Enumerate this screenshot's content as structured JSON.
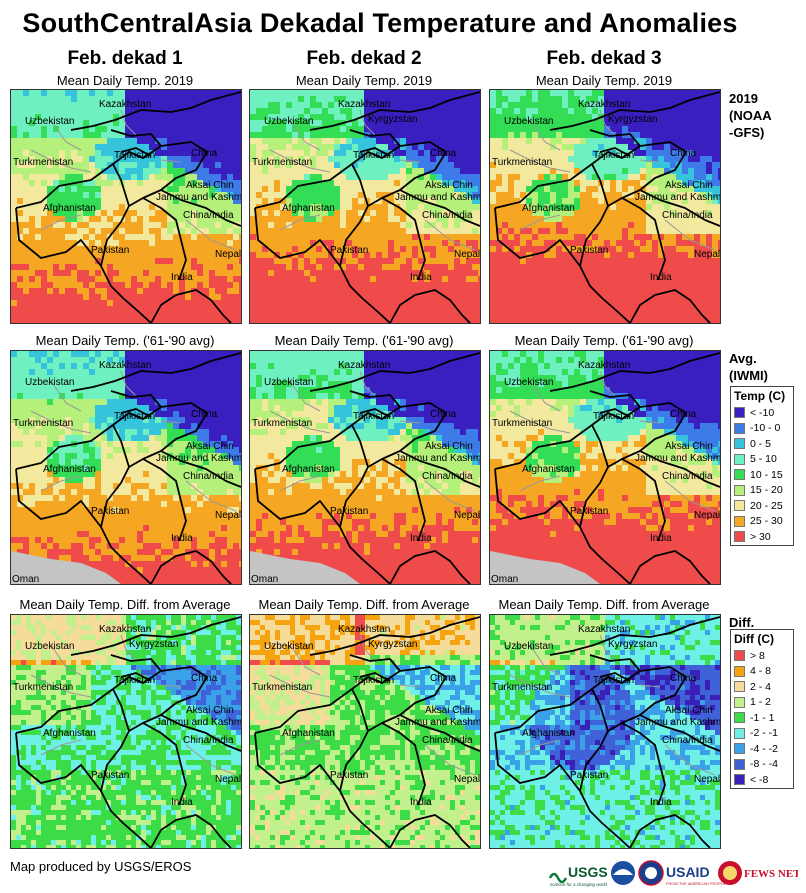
{
  "title": "SouthCentralAsia Dekadal Temperature and Anomalies",
  "columns": [
    "Feb. dekad 1",
    "Feb. dekad 2",
    "Feb. dekad 3"
  ],
  "rows": [
    {
      "key": "current",
      "panel_title": "Mean Daily Temp. 2019",
      "label_lines": [
        "2019",
        "(NOAA",
        "-GFS)"
      ]
    },
    {
      "key": "avg",
      "panel_title": "Mean Daily Temp. ('61-'90 avg)",
      "label_lines": [
        "Avg.",
        "(IWMI)"
      ]
    },
    {
      "key": "diff",
      "panel_title": "Mean Daily Temp. Diff. from Average",
      "label_lines": [
        "Diff."
      ]
    }
  ],
  "map_labels": {
    "kazakhstan": "Kazakhstan",
    "uzbekistan": "Uzbekistan",
    "kyrgyzstan": "Kyrgyzstan",
    "turkmenistan": "Turkmenistan",
    "tajikistan": "Tajikistan",
    "china": "China",
    "aksai_chin": "Aksai Chin",
    "jammu_kashmir": "Jammu and Kashmir",
    "afghanistan": "Afghanistan",
    "china_india": "China/India",
    "pakistan": "Pakistan",
    "nepal": "Nepal",
    "india": "India",
    "oman": "Oman"
  },
  "temp_legend": {
    "title": "Temp (C)",
    "items": [
      {
        "label": "< -10",
        "color": "#3a1fc0"
      },
      {
        "label": "-10 - 0",
        "color": "#3d7be8"
      },
      {
        "label": "0 - 5",
        "color": "#35c4dc"
      },
      {
        "label": "5 - 10",
        "color": "#6ff0c0"
      },
      {
        "label": "10 - 15",
        "color": "#33dd55"
      },
      {
        "label": "15 - 20",
        "color": "#b5f07a"
      },
      {
        "label": "20 - 25",
        "color": "#f2e89e"
      },
      {
        "label": "25 - 30",
        "color": "#f5a623"
      },
      {
        "label": "> 30",
        "color": "#ef4b4b"
      }
    ]
  },
  "diff_legend": {
    "title": "Diff (C)",
    "items": [
      {
        "label": "> 8",
        "color": "#ef4b4b"
      },
      {
        "label": "4 - 8",
        "color": "#f5a30f"
      },
      {
        "label": "2 - 4",
        "color": "#f6dc9a"
      },
      {
        "label": "1 - 2",
        "color": "#c2f08c"
      },
      {
        "label": "-1 - 1",
        "color": "#3bdc45"
      },
      {
        "label": "-2 - -1",
        "color": "#6ef0e6"
      },
      {
        "label": "-4 - -2",
        "color": "#3aa0e8"
      },
      {
        "label": "-8 - -4",
        "color": "#3f62d8"
      },
      {
        "label": "< -8",
        "color": "#3a1fb8"
      }
    ]
  },
  "footer": "Map produced by USGS/EROS",
  "logos": {
    "usgs": "USGS",
    "usgs_tagline": "science for a changing world",
    "usaid": "USAID",
    "usaid_tagline": "FROM THE AMERICAN PEOPLE",
    "fews": "FEWS NET"
  }
}
